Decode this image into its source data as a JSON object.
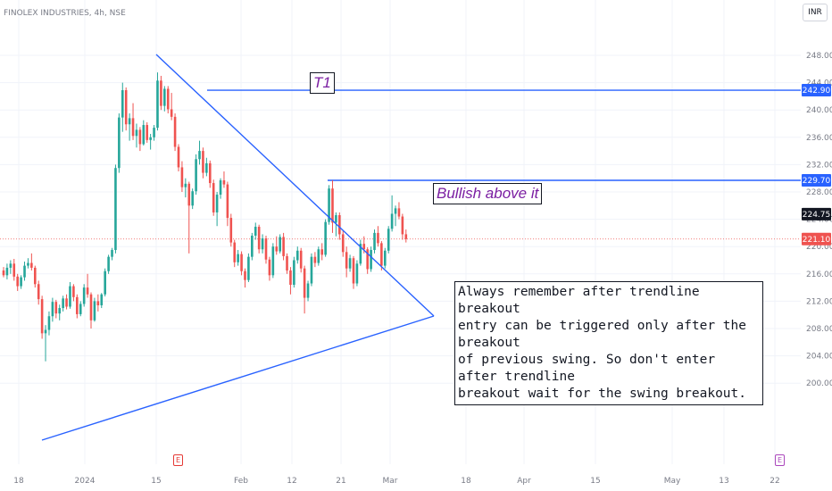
{
  "header": {
    "symbol_title": "FINOLEX INDUSTRIES, 4h, NSE",
    "currency": "INR"
  },
  "annotations": {
    "t1_label": "T1",
    "bullish_label": "Bullish above it",
    "note_lines": [
      "Always remember after trendline breakout",
      "entry can be triggered only after the breakout",
      "of previous swing. So don't enter after trendline",
      "breakout wait for the swing breakout."
    ]
  },
  "earnings": [
    {
      "label": "E",
      "color": "#e53935"
    },
    {
      "label": "E",
      "color": "#ab47bc"
    }
  ],
  "colors": {
    "up": "#26a69a",
    "down": "#ef5350",
    "trendline": "#2962ff",
    "grid": "#f0f3fa",
    "axis_text": "#787b86",
    "current_price_line": "#ef5350"
  },
  "chart_data": {
    "type": "candlestick",
    "title": "FINOLEX INDUSTRIES, 4h, NSE",
    "ylim": [
      200,
      250
    ],
    "y_ticks": [
      "248.00",
      "244.00",
      "240.00",
      "236.00",
      "232.00",
      "228.00",
      "224.00",
      "220.00",
      "216.00",
      "212.00",
      "208.00",
      "204.00",
      "200.00"
    ],
    "x_ticks": [
      "18",
      "2024",
      "15",
      "Feb",
      "12",
      "21",
      "Mar",
      "18",
      "Apr",
      "15",
      "May",
      "13",
      "22"
    ],
    "price_badges": [
      {
        "value": 242.9,
        "label": "242.90",
        "color": "#2962ff"
      },
      {
        "value": 229.7,
        "label": "229.70",
        "color": "#2962ff"
      },
      {
        "value": 224.75,
        "label": "224.75",
        "color": "#131722"
      },
      {
        "value": 221.1,
        "label": "221.10",
        "color": "#ef5350"
      }
    ],
    "horizontal_levels": [
      {
        "name": "T1",
        "value": 242.9
      },
      {
        "name": "Bullish above it",
        "value": 229.7
      }
    ],
    "current_price": 221.1,
    "candles": [
      [
        216.5,
        217.0,
        215.5,
        215.8
      ],
      [
        215.8,
        217.5,
        215.2,
        216.9
      ],
      [
        216.9,
        218.0,
        216.0,
        217.5
      ],
      [
        217.5,
        218.2,
        215.0,
        215.6
      ],
      [
        215.6,
        216.0,
        213.5,
        214.2
      ],
      [
        214.2,
        215.8,
        213.8,
        215.5
      ],
      [
        215.5,
        217.8,
        215.0,
        217.2
      ],
      [
        217.2,
        218.3,
        216.8,
        217.6
      ],
      [
        217.6,
        219.0,
        216.5,
        216.9
      ],
      [
        216.9,
        217.2,
        214.0,
        214.5
      ],
      [
        214.5,
        215.0,
        211.5,
        212.3
      ],
      [
        212.3,
        212.8,
        206.5,
        207.3
      ],
      [
        207.3,
        208.5,
        203.2,
        207.8
      ],
      [
        207.8,
        210.5,
        207.0,
        209.8
      ],
      [
        209.8,
        212.5,
        209.0,
        211.9
      ],
      [
        211.9,
        212.2,
        209.5,
        210.2
      ],
      [
        210.2,
        211.5,
        209.2,
        211.0
      ],
      [
        211.0,
        212.8,
        210.5,
        212.4
      ],
      [
        212.4,
        213.0,
        210.8,
        211.2
      ],
      [
        211.2,
        214.8,
        210.9,
        214.2
      ],
      [
        214.2,
        214.5,
        212.0,
        212.6
      ],
      [
        212.6,
        213.0,
        209.5,
        210.1
      ],
      [
        210.1,
        212.0,
        209.8,
        211.6
      ],
      [
        211.6,
        214.5,
        211.2,
        214.0
      ],
      [
        214.0,
        216.0,
        212.5,
        213.0
      ],
      [
        213.0,
        213.3,
        208.0,
        209.2
      ],
      [
        209.2,
        212.5,
        209.0,
        212.0
      ],
      [
        212.0,
        213.0,
        210.5,
        211.4
      ],
      [
        211.4,
        213.2,
        211.0,
        213.0
      ],
      [
        213.0,
        216.8,
        212.7,
        216.4
      ],
      [
        216.4,
        218.8,
        216.0,
        218.5
      ],
      [
        218.5,
        219.8,
        218.0,
        219.5
      ],
      [
        219.5,
        232.0,
        219.0,
        231.5
      ],
      [
        231.5,
        239.5,
        230.8,
        238.9
      ],
      [
        238.9,
        244.0,
        236.8,
        242.9
      ],
      [
        242.9,
        243.3,
        237.0,
        237.9
      ],
      [
        237.9,
        239.5,
        235.5,
        238.8
      ],
      [
        238.8,
        241.0,
        235.6,
        236.2
      ],
      [
        236.2,
        238.0,
        234.5,
        237.1
      ],
      [
        237.1,
        237.5,
        234.0,
        235.0
      ],
      [
        235.0,
        238.5,
        234.8,
        237.8
      ],
      [
        237.8,
        238.2,
        235.2,
        235.6
      ],
      [
        235.6,
        236.5,
        234.2,
        236.0
      ],
      [
        236.0,
        237.8,
        235.5,
        237.4
      ],
      [
        237.4,
        245.5,
        237.0,
        244.3
      ],
      [
        244.3,
        245.0,
        240.0,
        240.6
      ],
      [
        240.6,
        243.5,
        239.8,
        243.1
      ],
      [
        243.1,
        243.5,
        239.5,
        240.1
      ],
      [
        240.1,
        242.5,
        238.5,
        239.0
      ],
      [
        239.0,
        239.5,
        234.0,
        234.6
      ],
      [
        234.6,
        235.0,
        231.0,
        231.6
      ],
      [
        231.6,
        232.5,
        228.0,
        228.7
      ],
      [
        228.7,
        230.0,
        227.2,
        229.2
      ],
      [
        229.2,
        229.5,
        219.0,
        226.0
      ],
      [
        226.0,
        228.5,
        225.5,
        228.1
      ],
      [
        228.1,
        233.5,
        227.6,
        232.8
      ],
      [
        232.8,
        235.5,
        232.0,
        234.0
      ],
      [
        234.0,
        234.5,
        230.0,
        230.8
      ],
      [
        230.8,
        233.0,
        230.3,
        232.2
      ],
      [
        232.2,
        232.6,
        228.6,
        229.3
      ],
      [
        229.3,
        229.8,
        224.5,
        225.0
      ],
      [
        225.0,
        228.0,
        223.0,
        227.6
      ],
      [
        227.6,
        230.0,
        227.0,
        229.7
      ],
      [
        229.7,
        231.0,
        228.6,
        229.1
      ],
      [
        229.1,
        229.5,
        223.0,
        224.2
      ],
      [
        224.2,
        224.8,
        220.0,
        220.6
      ],
      [
        220.6,
        221.0,
        217.0,
        217.7
      ],
      [
        217.7,
        219.5,
        217.2,
        218.9
      ],
      [
        218.9,
        219.3,
        215.8,
        216.4
      ],
      [
        216.4,
        216.8,
        214.0,
        215.1
      ],
      [
        215.1,
        219.0,
        214.8,
        218.5
      ],
      [
        218.5,
        222.0,
        218.0,
        221.6
      ],
      [
        221.6,
        223.5,
        221.0,
        222.9
      ],
      [
        222.9,
        223.2,
        219.0,
        219.6
      ],
      [
        219.6,
        221.8,
        219.0,
        221.2
      ],
      [
        221.2,
        221.6,
        217.5,
        218.1
      ],
      [
        218.1,
        218.5,
        215.0,
        215.8
      ],
      [
        215.8,
        220.5,
        215.4,
        220.0
      ],
      [
        220.0,
        221.5,
        218.8,
        219.3
      ],
      [
        219.3,
        221.8,
        219.0,
        221.4
      ],
      [
        221.4,
        222.0,
        218.0,
        218.6
      ],
      [
        218.6,
        219.0,
        216.0,
        216.5
      ],
      [
        216.5,
        217.0,
        213.0,
        214.4
      ],
      [
        214.4,
        218.5,
        214.0,
        218.0
      ],
      [
        218.0,
        220.0,
        217.5,
        219.4
      ],
      [
        219.4,
        219.8,
        216.2,
        216.8
      ],
      [
        216.8,
        217.2,
        210.2,
        212.5
      ],
      [
        212.5,
        215.0,
        212.0,
        214.6
      ],
      [
        214.6,
        219.0,
        214.2,
        218.5
      ],
      [
        218.5,
        219.2,
        217.0,
        217.6
      ],
      [
        217.6,
        220.0,
        217.2,
        219.6
      ],
      [
        219.6,
        220.5,
        218.0,
        218.8
      ],
      [
        218.8,
        224.0,
        218.5,
        223.6
      ],
      [
        223.6,
        229.0,
        223.2,
        228.5
      ],
      [
        228.5,
        229.7,
        222.0,
        223.5
      ],
      [
        223.5,
        225.0,
        221.5,
        224.6
      ],
      [
        224.6,
        225.0,
        221.0,
        221.8
      ],
      [
        221.8,
        222.3,
        218.5,
        219.2
      ],
      [
        219.2,
        220.0,
        215.5,
        216.8
      ],
      [
        216.8,
        218.8,
        216.3,
        218.3
      ],
      [
        218.3,
        218.6,
        213.8,
        214.6
      ],
      [
        214.6,
        218.0,
        214.2,
        217.5
      ],
      [
        217.5,
        221.0,
        217.2,
        220.4
      ],
      [
        220.4,
        221.5,
        219.0,
        219.6
      ],
      [
        219.6,
        219.9,
        216.0,
        216.7
      ],
      [
        216.7,
        220.0,
        216.3,
        219.5
      ],
      [
        219.5,
        222.5,
        219.0,
        222.0
      ],
      [
        222.0,
        223.0,
        220.0,
        220.5
      ],
      [
        220.5,
        220.8,
        216.5,
        217.2
      ],
      [
        217.2,
        219.8,
        216.8,
        219.4
      ],
      [
        219.4,
        223.0,
        219.0,
        222.6
      ],
      [
        222.6,
        227.5,
        222.2,
        224.8
      ],
      [
        224.8,
        226.0,
        223.0,
        225.6
      ],
      [
        225.6,
        226.5,
        224.0,
        224.4
      ],
      [
        224.4,
        224.8,
        221.0,
        221.8
      ],
      [
        221.8,
        222.5,
        220.6,
        221.1
      ]
    ]
  }
}
